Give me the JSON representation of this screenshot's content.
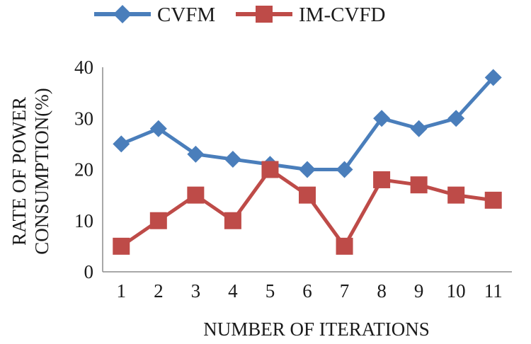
{
  "chart_data": {
    "type": "line",
    "title": "",
    "xlabel": "NUMBER OF ITERATIONS",
    "ylabel_lines": [
      "RATE OF POWER",
      "CONSUMPTION(%)"
    ],
    "categories": [
      "1",
      "2",
      "3",
      "4",
      "5",
      "6",
      "7",
      "8",
      "9",
      "10",
      "11"
    ],
    "ylim": [
      0,
      40
    ],
    "yticks": [
      "0",
      "10",
      "20",
      "30",
      "40"
    ],
    "grid": false,
    "legend_position": "top",
    "series": [
      {
        "name": "CVFM",
        "marker": "diamond",
        "color": "#4a7ebb",
        "values": [
          25,
          28,
          23,
          22,
          21,
          20,
          20,
          30,
          28,
          30,
          38
        ]
      },
      {
        "name": "IM-CVFD",
        "marker": "square",
        "color": "#be4b48",
        "values": [
          5,
          10,
          15,
          10,
          20,
          15,
          5,
          18,
          17,
          15,
          14
        ]
      }
    ]
  }
}
